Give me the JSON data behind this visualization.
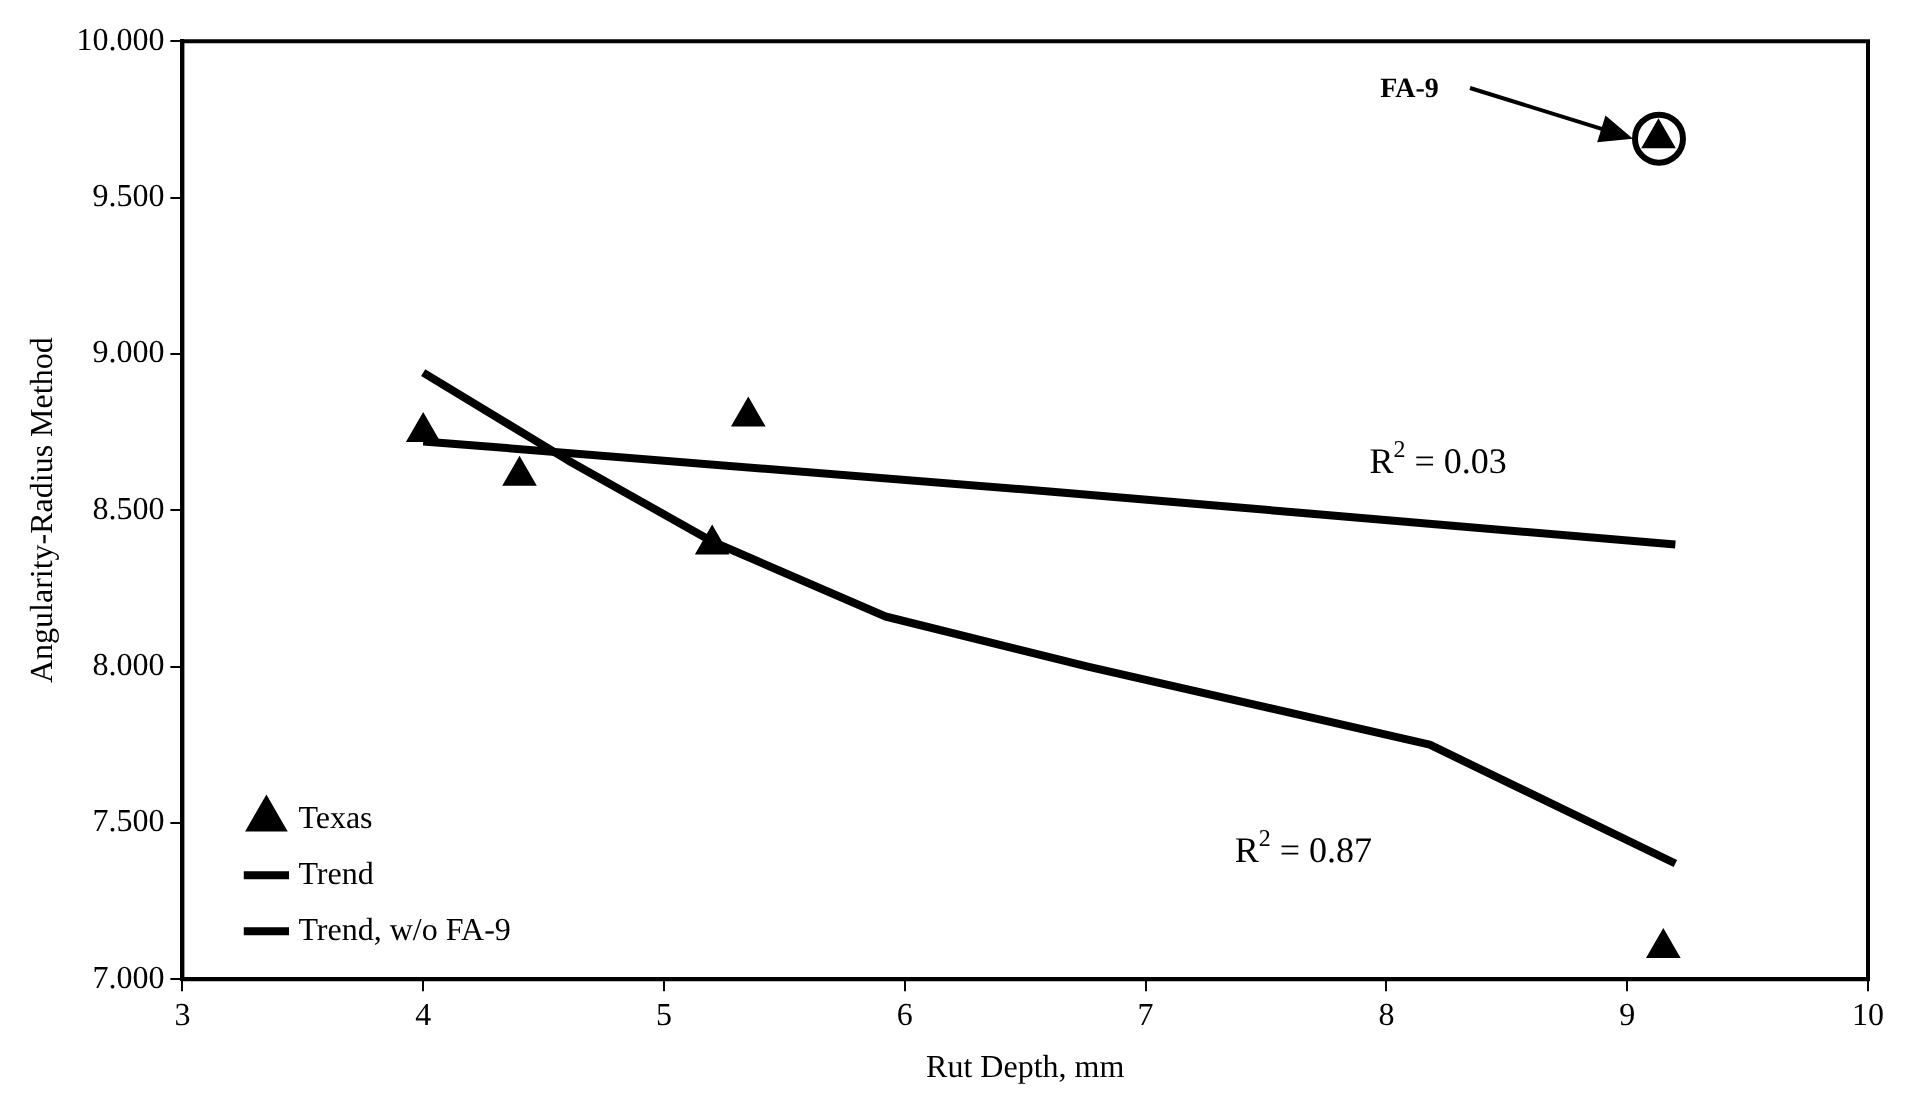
{
  "chart_data": {
    "type": "scatter",
    "xlabel": "Rut Depth, mm",
    "ylabel": "Angularity-Radius Method",
    "series": [
      {
        "name": "Texas",
        "type": "scatter",
        "marker": "triangle",
        "color": "#000000",
        "x": [
          4.0,
          4.4,
          5.2,
          5.35,
          9.13,
          9.15
        ],
        "values": [
          8.75,
          8.61,
          8.39,
          8.8,
          9.69,
          7.1
        ]
      },
      {
        "name": "Trend",
        "type": "line",
        "marker": "none",
        "line_style": "solid",
        "color": "#000000",
        "x": [
          4.0,
          6.6,
          9.2
        ],
        "values": [
          8.72,
          8.56,
          8.39
        ]
      },
      {
        "name": "Trend, w/o FA-9",
        "type": "line",
        "marker": "none",
        "line_style": "solid",
        "color": "#000000",
        "x": [
          4.0,
          4.6,
          5.2,
          5.92,
          6.76,
          8.18,
          9.2
        ],
        "values": [
          8.94,
          8.66,
          8.4,
          8.16,
          8.0,
          7.75,
          7.37
        ]
      }
    ],
    "annotations": [
      "FA-9",
      "R$^{2}$ = 0.03",
      "R$^{2}$ = 0.87"
    ],
    "xlim": [
      3,
      10
    ],
    "xticks": [
      3,
      4,
      5,
      6,
      7,
      8,
      9,
      10
    ],
    "ylim": [
      7,
      10
    ],
    "yticks": [
      {
        "value": 7,
        "label": "7.000"
      },
      {
        "value": 7.5,
        "label": "7.500"
      },
      {
        "value": 8,
        "label": "8.000"
      },
      {
        "value": 8.5,
        "label": "8.500"
      },
      {
        "value": 9,
        "label": "9.000"
      },
      {
        "value": 9.5,
        "label": "9.500"
      },
      {
        "value": 10,
        "label": "10.000"
      }
    ],
    "grid": false,
    "legend": "bottom left"
  }
}
